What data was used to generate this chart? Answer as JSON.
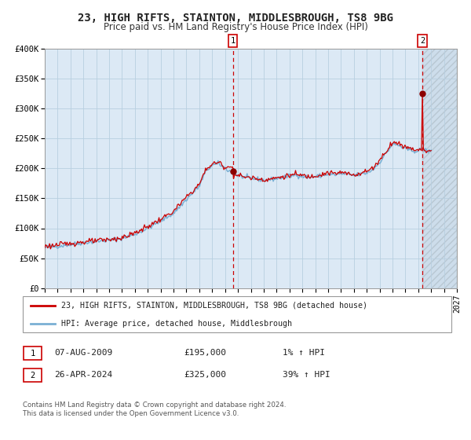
{
  "title": "23, HIGH RIFTS, STAINTON, MIDDLESBROUGH, TS8 9BG",
  "subtitle": "Price paid vs. HM Land Registry's House Price Index (HPI)",
  "x_start": 1995.0,
  "x_end": 2027.0,
  "y_min": 0,
  "y_max": 400000,
  "y_ticks": [
    0,
    50000,
    100000,
    150000,
    200000,
    250000,
    300000,
    350000,
    400000
  ],
  "y_tick_labels": [
    "£0",
    "£50K",
    "£100K",
    "£150K",
    "£200K",
    "£250K",
    "£300K",
    "£350K",
    "£400K"
  ],
  "x_tick_years": [
    1995,
    1996,
    1997,
    1998,
    1999,
    2000,
    2001,
    2002,
    2003,
    2004,
    2005,
    2006,
    2007,
    2008,
    2009,
    2010,
    2011,
    2012,
    2013,
    2014,
    2015,
    2016,
    2017,
    2018,
    2019,
    2020,
    2021,
    2022,
    2023,
    2024,
    2025,
    2026,
    2027
  ],
  "hpi_color": "#7ab0d4",
  "price_color": "#cc0000",
  "marker_color": "#8b0000",
  "sale1_x": 2009.6,
  "sale1_y": 195000,
  "sale2_x": 2024.32,
  "sale2_y": 325000,
  "vline1_x": 2009.6,
  "vline2_x": 2024.32,
  "bg_color": "#dce9f5",
  "grid_color": "#b8cfe0",
  "label1": "23, HIGH RIFTS, STAINTON, MIDDLESBROUGH, TS8 9BG (detached house)",
  "label2": "HPI: Average price, detached house, Middlesbrough",
  "annotation1": [
    "1",
    "07-AUG-2009",
    "£195,000",
    "1% ↑ HPI"
  ],
  "annotation2": [
    "2",
    "26-APR-2024",
    "£325,000",
    "39% ↑ HPI"
  ],
  "footnote1": "Contains HM Land Registry data © Crown copyright and database right 2024.",
  "footnote2": "This data is licensed under the Open Government Licence v3.0."
}
